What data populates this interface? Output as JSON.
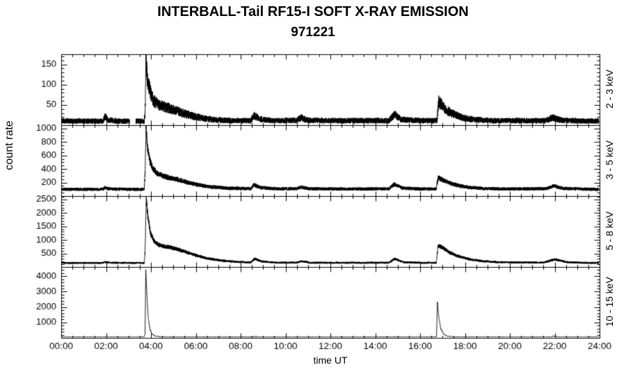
{
  "title": "INTERBALL-Tail RF15-I SOFT X-RAY EMISSION",
  "subtitle": "971221",
  "chart_data": {
    "type": "line",
    "xlabel": "time UT",
    "ylabel": "count rate",
    "background": "#ffffff",
    "line_color": "#000000",
    "x_range_hours": [
      0,
      24
    ],
    "x_major_tick_hours": 2,
    "x_minor_tick_hours": 0.5,
    "x_tick_labels": [
      "00:00",
      "02:00",
      "04:00",
      "06:00",
      "08:00",
      "10:00",
      "12:00",
      "14:00",
      "16:00",
      "18:00",
      "20:00",
      "22:00",
      "24:00"
    ],
    "panels": [
      {
        "right_label": "2 - 3 keV",
        "ylim": [
          0,
          175
        ],
        "yticks": [
          50,
          100,
          150
        ],
        "y_minor_step": 10,
        "baseline": 10,
        "noise_coeff": 2.1,
        "gaps": [
          [
            3.05,
            3.33
          ]
        ],
        "points": [
          [
            0,
            10
          ],
          [
            1.5,
            10
          ],
          [
            1.85,
            10
          ],
          [
            1.95,
            22
          ],
          [
            2.1,
            13
          ],
          [
            2.6,
            10
          ],
          [
            3.04,
            10
          ],
          [
            3.34,
            10
          ],
          [
            3.7,
            10
          ],
          [
            3.74,
            30
          ],
          [
            3.78,
            160
          ],
          [
            3.84,
            115
          ],
          [
            3.95,
            85
          ],
          [
            4.1,
            62
          ],
          [
            4.3,
            50
          ],
          [
            4.6,
            45
          ],
          [
            5.0,
            38
          ],
          [
            5.4,
            30
          ],
          [
            6.0,
            20
          ],
          [
            6.8,
            13
          ],
          [
            7.6,
            11
          ],
          [
            8.45,
            11
          ],
          [
            8.6,
            24
          ],
          [
            8.85,
            15
          ],
          [
            9.5,
            11
          ],
          [
            10.5,
            12
          ],
          [
            10.7,
            18
          ],
          [
            11.0,
            12
          ],
          [
            12.5,
            11
          ],
          [
            14.6,
            11
          ],
          [
            14.85,
            26
          ],
          [
            15.15,
            14
          ],
          [
            16.0,
            11
          ],
          [
            16.7,
            11
          ],
          [
            16.76,
            13
          ],
          [
            16.82,
            58
          ],
          [
            16.95,
            50
          ],
          [
            17.15,
            38
          ],
          [
            17.45,
            28
          ],
          [
            17.85,
            19
          ],
          [
            18.35,
            14
          ],
          [
            19.2,
            11
          ],
          [
            21.6,
            11
          ],
          [
            21.9,
            19
          ],
          [
            22.3,
            12
          ],
          [
            23.5,
            10
          ],
          [
            24,
            10
          ]
        ]
      },
      {
        "right_label": "3 - 5 keV",
        "ylim": [
          0,
          1050
        ],
        "yticks": [
          200,
          400,
          600,
          800,
          1000
        ],
        "y_minor_step": 50,
        "baseline": 100,
        "noise_coeff": 2.4,
        "gaps": [],
        "points": [
          [
            0,
            100
          ],
          [
            1.85,
            100
          ],
          [
            1.95,
            125
          ],
          [
            2.15,
            105
          ],
          [
            3.04,
            100
          ],
          [
            3.34,
            100
          ],
          [
            3.7,
            100
          ],
          [
            3.74,
            350
          ],
          [
            3.78,
            1000
          ],
          [
            3.85,
            720
          ],
          [
            3.95,
            520
          ],
          [
            4.1,
            400
          ],
          [
            4.3,
            330
          ],
          [
            4.6,
            290
          ],
          [
            4.9,
            265
          ],
          [
            5.2,
            245
          ],
          [
            5.6,
            205
          ],
          [
            6.1,
            165
          ],
          [
            6.7,
            135
          ],
          [
            7.5,
            115
          ],
          [
            8.45,
            110
          ],
          [
            8.6,
            165
          ],
          [
            8.9,
            125
          ],
          [
            9.6,
            108
          ],
          [
            10.5,
            110
          ],
          [
            10.7,
            132
          ],
          [
            11.05,
            108
          ],
          [
            12.5,
            105
          ],
          [
            14.6,
            106
          ],
          [
            14.85,
            175
          ],
          [
            15.2,
            118
          ],
          [
            16.0,
            105
          ],
          [
            16.72,
            105
          ],
          [
            16.8,
            275
          ],
          [
            16.98,
            245
          ],
          [
            17.25,
            200
          ],
          [
            17.65,
            160
          ],
          [
            18.15,
            130
          ],
          [
            18.8,
            112
          ],
          [
            19.6,
            106
          ],
          [
            21.6,
            108
          ],
          [
            21.95,
            150
          ],
          [
            22.4,
            112
          ],
          [
            23.5,
            102
          ],
          [
            24,
            100
          ]
        ]
      },
      {
        "right_label": "5 - 8 keV",
        "ylim": [
          0,
          2625
        ],
        "yticks": [
          500,
          1000,
          1500,
          2000,
          2500
        ],
        "y_minor_step": 100,
        "baseline": 150,
        "noise_coeff": 2.8,
        "gaps": [],
        "points": [
          [
            0,
            150
          ],
          [
            1.85,
            150
          ],
          [
            1.95,
            185
          ],
          [
            2.2,
            155
          ],
          [
            3.7,
            150
          ],
          [
            3.74,
            600
          ],
          [
            3.79,
            2500
          ],
          [
            3.88,
            1750
          ],
          [
            4.0,
            1200
          ],
          [
            4.15,
            950
          ],
          [
            4.35,
            820
          ],
          [
            4.6,
            760
          ],
          [
            4.9,
            720
          ],
          [
            5.2,
            650
          ],
          [
            5.6,
            540
          ],
          [
            6.0,
            430
          ],
          [
            6.5,
            320
          ],
          [
            7.1,
            240
          ],
          [
            7.8,
            190
          ],
          [
            8.45,
            170
          ],
          [
            8.62,
            300
          ],
          [
            8.95,
            205
          ],
          [
            9.6,
            160
          ],
          [
            10.5,
            162
          ],
          [
            10.75,
            215
          ],
          [
            11.1,
            158
          ],
          [
            12.5,
            155
          ],
          [
            14.6,
            158
          ],
          [
            14.87,
            300
          ],
          [
            15.25,
            180
          ],
          [
            16.0,
            155
          ],
          [
            16.72,
            155
          ],
          [
            16.8,
            800
          ],
          [
            17.0,
            720
          ],
          [
            17.3,
            540
          ],
          [
            17.7,
            400
          ],
          [
            18.2,
            285
          ],
          [
            18.8,
            215
          ],
          [
            19.5,
            175
          ],
          [
            21.5,
            165
          ],
          [
            22.0,
            280
          ],
          [
            22.55,
            180
          ],
          [
            23.3,
            155
          ],
          [
            24,
            150
          ]
        ]
      },
      {
        "right_label": "10 - 15 keV",
        "ylim": [
          0,
          4600
        ],
        "yticks": [
          1000,
          2000,
          3000,
          4000
        ],
        "y_minor_step": 200,
        "baseline": 60,
        "noise_coeff": 1.0,
        "gaps": [],
        "points": [
          [
            0,
            60
          ],
          [
            3.6,
            60
          ],
          [
            3.7,
            60
          ],
          [
            3.74,
            300
          ],
          [
            3.77,
            4400
          ],
          [
            3.82,
            2800
          ],
          [
            3.88,
            1300
          ],
          [
            3.95,
            600
          ],
          [
            4.05,
            250
          ],
          [
            4.2,
            110
          ],
          [
            4.5,
            70
          ],
          [
            6.0,
            60
          ],
          [
            8.55,
            65
          ],
          [
            8.65,
            90
          ],
          [
            8.9,
            62
          ],
          [
            12.0,
            60
          ],
          [
            14.8,
            65
          ],
          [
            14.9,
            85
          ],
          [
            15.1,
            60
          ],
          [
            16.68,
            60
          ],
          [
            16.73,
            65
          ],
          [
            16.77,
            2300
          ],
          [
            16.83,
            1400
          ],
          [
            16.92,
            600
          ],
          [
            17.05,
            250
          ],
          [
            17.2,
            110
          ],
          [
            17.5,
            70
          ],
          [
            18.5,
            60
          ],
          [
            21.85,
            60
          ],
          [
            21.95,
            130
          ],
          [
            22.15,
            62
          ],
          [
            24,
            60
          ]
        ]
      }
    ]
  }
}
